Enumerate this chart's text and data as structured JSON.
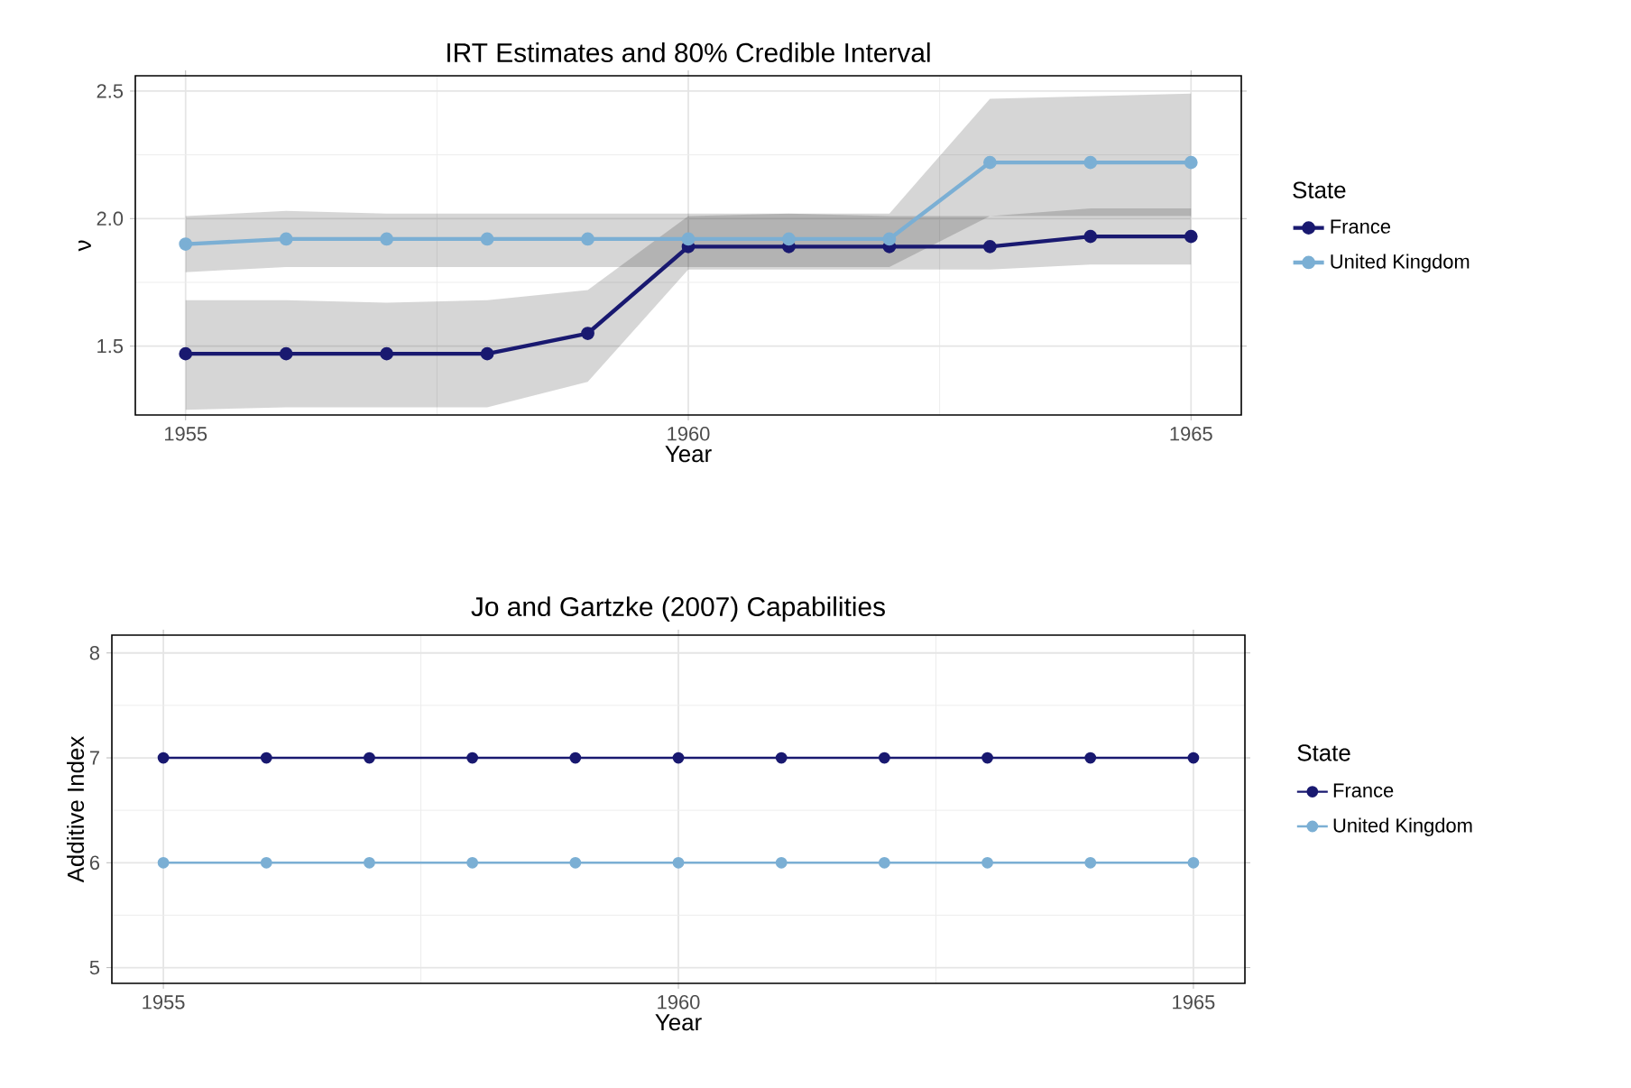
{
  "chart_data": [
    {
      "type": "line",
      "title": "IRT Estimates and 80% Credible Interval",
      "xlabel": "Year",
      "ylabel": "ν",
      "legend_title": "State",
      "x": [
        1955,
        1956,
        1957,
        1958,
        1959,
        1960,
        1961,
        1962,
        1963,
        1964,
        1965
      ],
      "series": [
        {
          "name": "France",
          "color": "#191970",
          "values": [
            1.47,
            1.47,
            1.47,
            1.47,
            1.55,
            1.89,
            1.89,
            1.89,
            1.89,
            1.93,
            1.93
          ],
          "lower": [
            1.25,
            1.26,
            1.26,
            1.26,
            1.36,
            1.8,
            1.8,
            1.8,
            1.8,
            1.82,
            1.82
          ],
          "upper": [
            1.68,
            1.68,
            1.67,
            1.68,
            1.72,
            2.01,
            2.02,
            2.01,
            2.01,
            2.04,
            2.04
          ]
        },
        {
          "name": "United Kingdom",
          "color": "#7bafd4",
          "values": [
            1.9,
            1.92,
            1.92,
            1.92,
            1.92,
            1.92,
            1.92,
            1.92,
            2.22,
            2.22,
            2.22
          ],
          "lower": [
            1.79,
            1.81,
            1.81,
            1.81,
            1.81,
            1.81,
            1.81,
            1.81,
            2.01,
            2.01,
            2.01
          ],
          "upper": [
            2.01,
            2.03,
            2.02,
            2.02,
            2.02,
            2.02,
            2.02,
            2.02,
            2.47,
            2.48,
            2.49
          ]
        }
      ],
      "xlim": [
        1954.5,
        1965.5
      ],
      "ylim": [
        1.23,
        2.56
      ],
      "xticks": [
        1955,
        1960,
        1965
      ],
      "yticks": [
        1.5,
        {
          "value": 2,
          "label": "2.0"
        },
        2.5
      ],
      "grid": true,
      "legend": "right",
      "marker": "circle",
      "line_style": "solid"
    },
    {
      "type": "line",
      "title": "Jo and Gartzke (2007) Capabilities",
      "xlabel": "Year",
      "ylabel": "Additive Index",
      "legend_title": "State",
      "x": [
        1955,
        1956,
        1957,
        1958,
        1959,
        1960,
        1961,
        1962,
        1963,
        1964,
        1965
      ],
      "series": [
        {
          "name": "France",
          "color": "#191970",
          "values": [
            7,
            7,
            7,
            7,
            7,
            7,
            7,
            7,
            7,
            7,
            7
          ]
        },
        {
          "name": "United Kingdom",
          "color": "#7bafd4",
          "values": [
            6,
            6,
            6,
            6,
            6,
            6,
            6,
            6,
            6,
            6,
            6
          ]
        }
      ],
      "xlim": [
        1954.5,
        1965.5
      ],
      "ylim": [
        4.85,
        8.17
      ],
      "xticks": [
        1955,
        1960,
        1965
      ],
      "yticks": [
        5,
        6,
        7,
        8
      ],
      "grid": true,
      "legend": "right",
      "marker": "circle",
      "line_style": "solid"
    }
  ]
}
